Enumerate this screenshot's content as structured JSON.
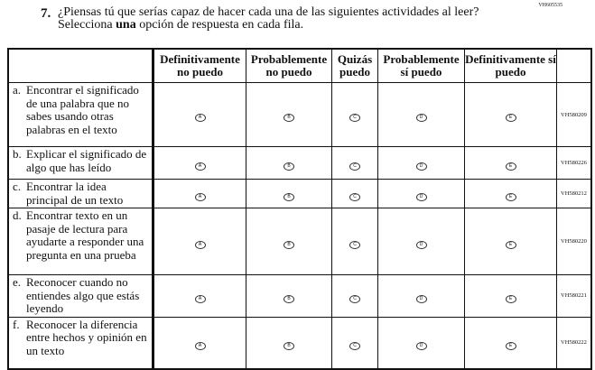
{
  "question": {
    "id": "VH605535",
    "number": "7.",
    "text_before": "¿Piensas tú que serías capaz de hacer cada una de las siguientes actividades al leer? Selecciona ",
    "text_bold": "una",
    "text_after": " opción de respuesta en cada fila."
  },
  "columns": [
    "Definitivamente no puedo",
    "Probablemente no puedo",
    "Quizás puedo",
    "Probablemente sí puedo",
    "Definitivamente sí puedo"
  ],
  "bubbles": [
    "A",
    "B",
    "C",
    "D",
    "E"
  ],
  "rows": [
    {
      "letter": "a.",
      "text": "Encontrar el significado de una palabra que no sabes usando otras palabras en el texto",
      "id": "VH580209"
    },
    {
      "letter": "b.",
      "text": "Explicar el significado de algo que has leído",
      "id": "VH580226"
    },
    {
      "letter": "c.",
      "text": "Encontrar la idea principal de un texto",
      "id": "VH580212"
    },
    {
      "letter": "d.",
      "text": "Encontrar texto en un pasaje de lectura para ayudarte a responder una pregunta en una prueba",
      "id": "VH580220"
    },
    {
      "letter": "e.",
      "text": "Reconocer cuando no entiendes algo que estás leyendo",
      "id": "VH580221"
    },
    {
      "letter": "f.",
      "text": "Reconocer la diferencia entre hechos y opinión en un texto",
      "id": "VH580222"
    }
  ]
}
